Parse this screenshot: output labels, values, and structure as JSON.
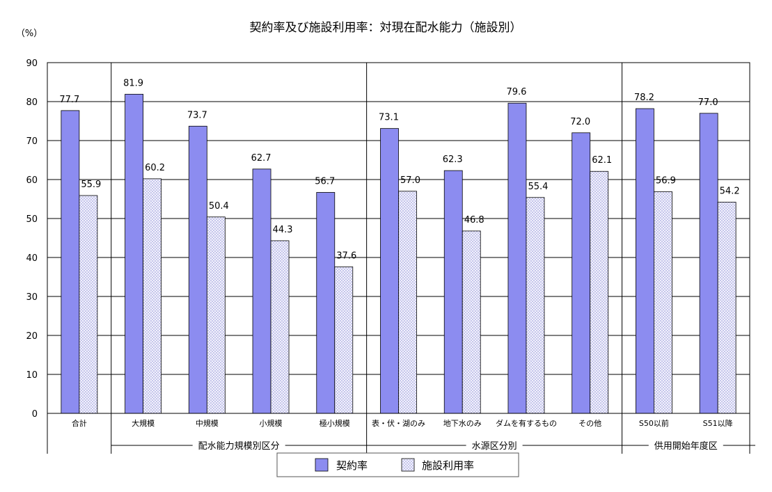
{
  "chart_data": {
    "type": "bar",
    "title": "契約率及び施設利用率：対現在配水能力（施設別）",
    "unit": "（%）",
    "ylim": [
      0,
      90
    ],
    "yticks": [
      0,
      10,
      20,
      30,
      40,
      50,
      60,
      70,
      80,
      90
    ],
    "grid": true,
    "categories": [
      "合計",
      "大規模",
      "中規模",
      "小規模",
      "極小規模",
      "表・伏・湖のみ",
      "地下水のみ",
      "ダムを有するもの",
      "その他",
      "S50以前",
      "S51以降"
    ],
    "groups": [
      {
        "label": "配水能力規模別区分",
        "categories": [
          "大規模",
          "中規模",
          "小規模",
          "極小規模"
        ]
      },
      {
        "label": "水源区分別",
        "categories": [
          "表・伏・湖のみ",
          "地下水のみ",
          "ダムを有するもの",
          "その他"
        ]
      },
      {
        "label": "供用開始年度区",
        "categories": [
          "S50以前",
          "S51以降"
        ]
      }
    ],
    "series": [
      {
        "name": "契約率",
        "values": [
          77.7,
          81.9,
          73.7,
          62.7,
          56.7,
          73.1,
          62.3,
          79.6,
          72.0,
          78.2,
          77.0
        ],
        "color": "#8c8cf0"
      },
      {
        "name": "施設利用率",
        "values": [
          55.9,
          60.2,
          50.4,
          44.3,
          37.6,
          57.0,
          46.8,
          55.4,
          62.1,
          56.9,
          54.2
        ],
        "color": "#e4e4f8"
      }
    ],
    "legend_position": "bottom"
  }
}
